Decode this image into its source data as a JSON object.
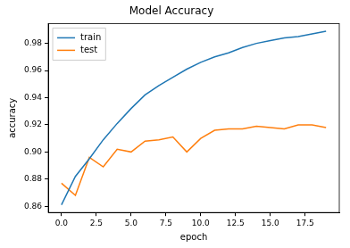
{
  "chart_data": {
    "type": "line",
    "title": "Model Accuracy",
    "x_label": "epoch",
    "y_label": "accuracy",
    "x": [
      0,
      1,
      2,
      3,
      4,
      5,
      6,
      7,
      8,
      9,
      10,
      11,
      12,
      13,
      14,
      15,
      16,
      17,
      18,
      19
    ],
    "series": [
      {
        "name": "train",
        "color": "#1f77b4",
        "values": [
          0.861,
          0.882,
          0.895,
          0.909,
          0.921,
          0.932,
          0.942,
          0.949,
          0.955,
          0.961,
          0.966,
          0.97,
          0.973,
          0.977,
          0.98,
          0.982,
          0.984,
          0.985,
          0.987,
          0.989
        ]
      },
      {
        "name": "test",
        "color": "#ff7f0e",
        "values": [
          0.877,
          0.868,
          0.896,
          0.889,
          0.902,
          0.9,
          0.908,
          0.909,
          0.911,
          0.9,
          0.91,
          0.916,
          0.917,
          0.917,
          0.919,
          0.918,
          0.917,
          0.92,
          0.92,
          0.918
        ]
      }
    ],
    "xlim": [
      -0.95,
      19.95
    ],
    "xticks": [
      {
        "value": 0,
        "label": "0.0"
      },
      {
        "value": 2.5,
        "label": "2.5"
      },
      {
        "value": 5,
        "label": "5.0"
      },
      {
        "value": 7.5,
        "label": "7.5"
      },
      {
        "value": 10,
        "label": "10.0"
      },
      {
        "value": 12.5,
        "label": "12.5"
      },
      {
        "value": 15,
        "label": "15.0"
      },
      {
        "value": 17.5,
        "label": "17.5"
      }
    ],
    "ylim": [
      0.8554,
      0.9946
    ],
    "yticks": [
      {
        "value": 0.86,
        "label": "0.86"
      },
      {
        "value": 0.88,
        "label": "0.88"
      },
      {
        "value": 0.9,
        "label": "0.90"
      },
      {
        "value": 0.92,
        "label": "0.92"
      },
      {
        "value": 0.94,
        "label": "0.94"
      },
      {
        "value": 0.96,
        "label": "0.96"
      },
      {
        "value": 0.98,
        "label": "0.98"
      }
    ],
    "grid": false,
    "legend": "upper left"
  }
}
